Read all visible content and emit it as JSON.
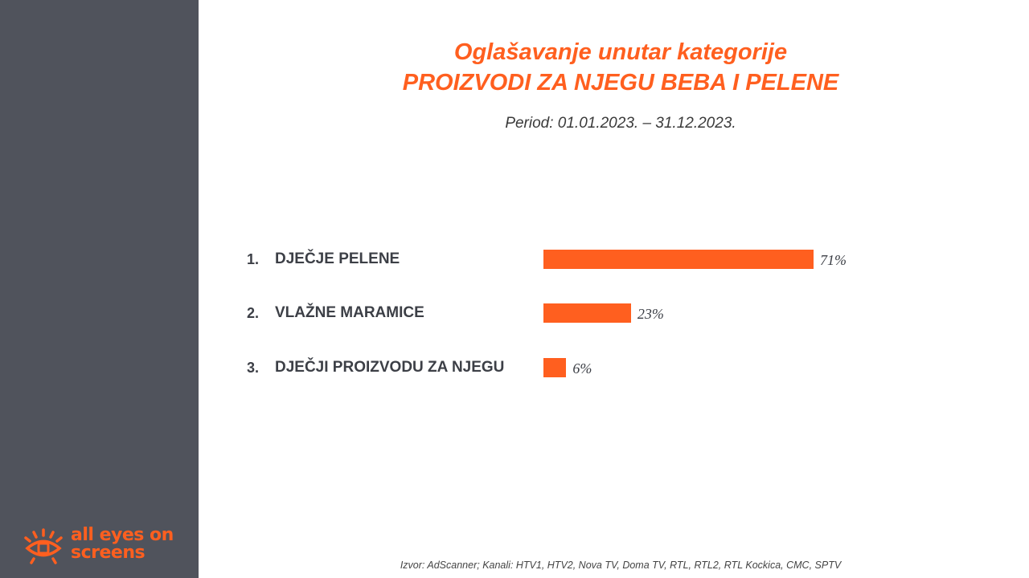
{
  "title": {
    "line1": "Oglašavanje unutar kategorije",
    "line2": "PROIZVODI ZA NJEGU BEBA I PELENE"
  },
  "period": "Period: 01.01.2023. – 31.12.2023.",
  "source": "Izvor: AdScanner; Kanali: HTV1, HTV2, Nova TV, Doma TV, RTL, RTL2, RTL Kockica, CMC, SPTV",
  "logo": {
    "line1": "all eyes on",
    "line2": "screens",
    "icon": "eye-icon"
  },
  "colors": {
    "accent": "#ff5f1f",
    "sidebar": "#50535c",
    "text": "#3c3f46"
  },
  "chart_data": {
    "type": "bar",
    "orientation": "horizontal",
    "categories": [
      "DJEČJE PELENE",
      "VLAŽNE MARAMICE",
      "DJEČJI PROIZVODU ZA NJEGU"
    ],
    "ranks": [
      "1.",
      "2.",
      "3."
    ],
    "values": [
      71,
      23,
      6
    ],
    "value_labels": [
      "71%",
      "23%",
      "6%"
    ],
    "unit": "%",
    "xlim": [
      0,
      100
    ],
    "grid": false,
    "legend": "none"
  }
}
